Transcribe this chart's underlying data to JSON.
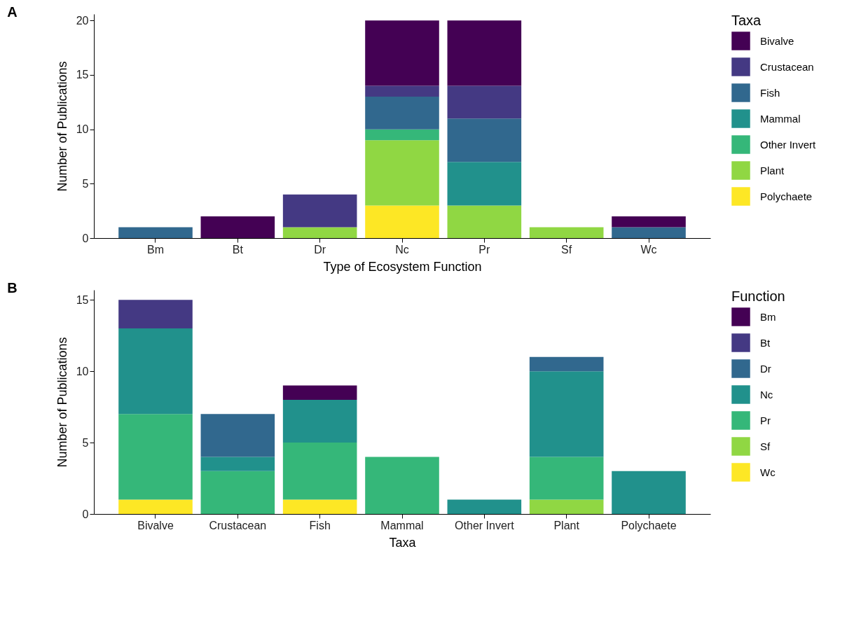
{
  "chart_data": [
    {
      "type": "bar",
      "title": "A",
      "xlabel": "Type of Ecosystem Function",
      "ylabel": "Number of Publications",
      "legend_title": "Taxa",
      "legend": "right",
      "stacked": true,
      "grid": false,
      "categories": [
        "Bm",
        "Bt",
        "Dr",
        "Nc",
        "Pr",
        "Sf",
        "Wc"
      ],
      "ylim": [
        0,
        20.6
      ],
      "yticks": [
        0,
        5,
        10,
        15,
        20
      ],
      "series": [
        {
          "name": "Polychaete",
          "color": "#fde725",
          "values": [
            null,
            null,
            null,
            3,
            null,
            null,
            null
          ]
        },
        {
          "name": "Plant",
          "color": "#90d743",
          "values": [
            null,
            null,
            1,
            6,
            3,
            1,
            null
          ]
        },
        {
          "name": "Other Invert",
          "color": "#35b779",
          "values": [
            null,
            null,
            null,
            1,
            null,
            null,
            null
          ]
        },
        {
          "name": "Mammal",
          "color": "#21918c",
          "values": [
            null,
            null,
            null,
            null,
            4,
            null,
            null
          ]
        },
        {
          "name": "Fish",
          "color": "#31688e",
          "values": [
            1,
            null,
            null,
            3,
            4,
            null,
            1
          ]
        },
        {
          "name": "Crustacean",
          "color": "#443983",
          "values": [
            null,
            null,
            3,
            1,
            3,
            null,
            null
          ]
        },
        {
          "name": "Bivalve",
          "color": "#440154",
          "values": [
            null,
            2,
            null,
            6,
            6,
            null,
            1
          ]
        }
      ]
    },
    {
      "type": "bar",
      "title": "B",
      "xlabel": "Taxa",
      "ylabel": "Number of Publications",
      "legend_title": "Function",
      "legend": "right",
      "stacked": true,
      "grid": false,
      "categories": [
        "Bivalve",
        "Crustacean",
        "Fish",
        "Mammal",
        "Other Invert",
        "Plant",
        "Polychaete"
      ],
      "ylim": [
        0,
        15.7
      ],
      "yticks": [
        0,
        5,
        10,
        15
      ],
      "series": [
        {
          "name": "Wc",
          "color": "#fde725",
          "values": [
            1,
            null,
            1,
            null,
            null,
            null,
            null
          ]
        },
        {
          "name": "Sf",
          "color": "#90d743",
          "values": [
            null,
            null,
            null,
            null,
            null,
            1,
            null
          ]
        },
        {
          "name": "Pr",
          "color": "#35b779",
          "values": [
            6,
            3,
            4,
            4,
            null,
            3,
            null
          ]
        },
        {
          "name": "Nc",
          "color": "#21918c",
          "values": [
            6,
            1,
            3,
            null,
            1,
            6,
            3
          ]
        },
        {
          "name": "Dr",
          "color": "#31688e",
          "values": [
            null,
            3,
            null,
            null,
            null,
            1,
            null
          ]
        },
        {
          "name": "Bt",
          "color": "#443983",
          "values": [
            2,
            null,
            null,
            null,
            null,
            null,
            null
          ]
        },
        {
          "name": "Bm",
          "color": "#440154",
          "values": [
            null,
            null,
            1,
            null,
            null,
            null,
            null
          ]
        }
      ]
    }
  ]
}
